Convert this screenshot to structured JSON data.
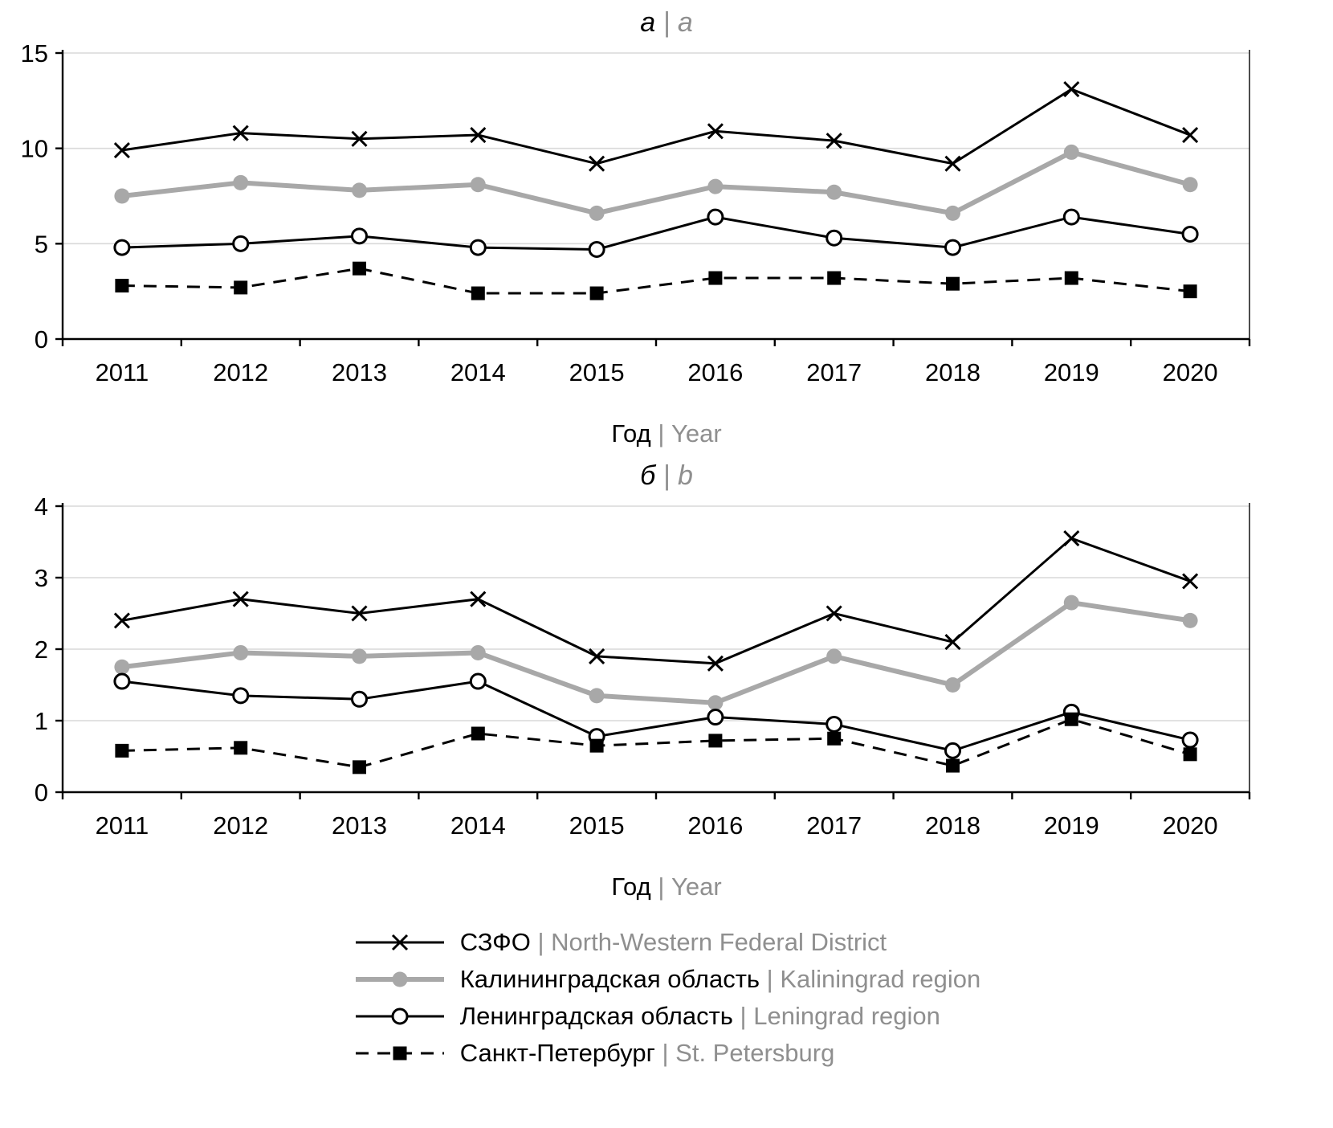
{
  "colors": {
    "black": "#000000",
    "gray_series": "#a8a8a8",
    "gray_text": "#8f8f8f",
    "gridline": "#d9d9d9",
    "background": "#ffffff"
  },
  "xlabel": {
    "ru": "Год",
    "sep": " | ",
    "en": "Year"
  },
  "legend": {
    "items": [
      {
        "id": "szfo",
        "label_ru": "СЗФО",
        "sep": " | ",
        "label_en": "North-Western Federal District",
        "marker": "x-cross",
        "line": "solid-black"
      },
      {
        "id": "kaliningrad",
        "label_ru": "Калининградская область",
        "sep": " | ",
        "label_en": "Kaliningrad region",
        "marker": "filled-circle",
        "line": "solid-gray-thick"
      },
      {
        "id": "leningrad",
        "label_ru": "Ленинградская область",
        "sep": " | ",
        "label_en": "Leningrad region",
        "marker": "open-circle",
        "line": "solid-black"
      },
      {
        "id": "spb",
        "label_ru": "Санкт-Петербург",
        "sep": " | ",
        "label_en": "St. Petersburg",
        "marker": "filled-square",
        "line": "dashed-black"
      }
    ]
  },
  "chart_data": [
    {
      "type": "line",
      "panel": "a",
      "title_ru": "а",
      "title_sep": " | ",
      "title_en": "a",
      "xlabel": "Год | Year",
      "categories": [
        2011,
        2012,
        2013,
        2014,
        2015,
        2016,
        2017,
        2018,
        2019,
        2020
      ],
      "ylim": [
        0,
        15
      ],
      "yticks": [
        0,
        5,
        10,
        15
      ],
      "grid": true,
      "series": [
        {
          "name": "СЗФО | North-Western Federal District",
          "marker": "x-cross",
          "line": "solid-black",
          "values": [
            9.9,
            10.8,
            10.5,
            10.7,
            9.2,
            10.9,
            10.4,
            9.2,
            13.1,
            10.7
          ]
        },
        {
          "name": "Калининградская область | Kaliningrad region",
          "marker": "filled-circle",
          "line": "solid-gray-thick",
          "values": [
            7.5,
            8.2,
            7.8,
            8.1,
            6.6,
            8.0,
            7.7,
            6.6,
            9.8,
            8.1
          ]
        },
        {
          "name": "Ленинградская область | Leningrad region",
          "marker": "open-circle",
          "line": "solid-black",
          "values": [
            4.8,
            5.0,
            5.4,
            4.8,
            4.7,
            6.4,
            5.3,
            4.8,
            6.4,
            5.5
          ]
        },
        {
          "name": "Санкт-Петербург | St. Petersburg",
          "marker": "filled-square",
          "line": "dashed-black",
          "values": [
            2.8,
            2.7,
            3.7,
            2.4,
            2.4,
            3.2,
            3.2,
            2.9,
            3.2,
            2.5
          ]
        }
      ]
    },
    {
      "type": "line",
      "panel": "b",
      "title_ru": "б",
      "title_sep": " | ",
      "title_en": "b",
      "xlabel": "Год | Year",
      "categories": [
        2011,
        2012,
        2013,
        2014,
        2015,
        2016,
        2017,
        2018,
        2019,
        2020
      ],
      "ylim": [
        0,
        4
      ],
      "yticks": [
        0,
        1,
        2,
        3,
        4
      ],
      "grid": true,
      "series": [
        {
          "name": "СЗФО | North-Western Federal District",
          "marker": "x-cross",
          "line": "solid-black",
          "values": [
            2.4,
            2.7,
            2.5,
            2.7,
            1.9,
            1.8,
            2.5,
            2.1,
            3.55,
            2.95
          ]
        },
        {
          "name": "Калининградская область | Kaliningrad region",
          "marker": "filled-circle",
          "line": "solid-gray-thick",
          "values": [
            1.75,
            1.95,
            1.9,
            1.95,
            1.35,
            1.25,
            1.9,
            1.5,
            2.65,
            2.4
          ]
        },
        {
          "name": "Ленинградская область | Leningrad region",
          "marker": "open-circle",
          "line": "solid-black",
          "values": [
            1.55,
            1.35,
            1.3,
            1.55,
            0.78,
            1.05,
            0.95,
            0.58,
            1.12,
            0.73
          ]
        },
        {
          "name": "Санкт-Петербург | St. Petersburg",
          "marker": "filled-square",
          "line": "dashed-black",
          "values": [
            0.58,
            0.62,
            0.35,
            0.82,
            0.65,
            0.72,
            0.75,
            0.37,
            1.02,
            0.53
          ]
        }
      ]
    }
  ]
}
